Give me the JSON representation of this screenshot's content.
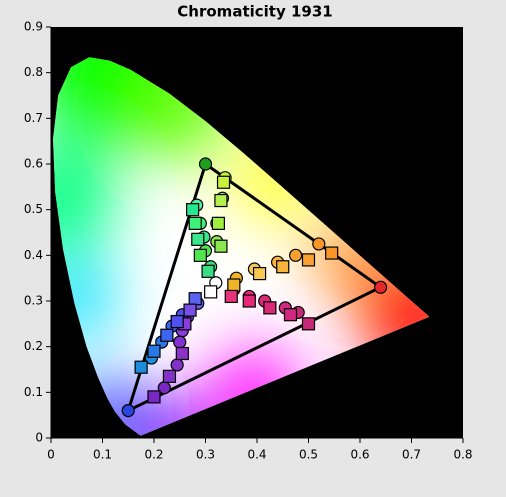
{
  "chart_data": {
    "type": "scatter",
    "title": "Chromaticity 1931",
    "xlim": [
      0,
      0.8
    ],
    "ylim": [
      0,
      0.9
    ],
    "xticks": [
      0,
      0.1,
      0.2,
      0.3,
      0.4,
      0.5,
      0.6,
      0.7,
      0.8
    ],
    "yticks": [
      0,
      0.1,
      0.2,
      0.3,
      0.4,
      0.5,
      0.6,
      0.7,
      0.8,
      0.9
    ],
    "background": "#000000",
    "gamut": {
      "x": [
        0.64,
        0.3,
        0.15
      ],
      "y": [
        0.33,
        0.6,
        0.06
      ],
      "colors": [
        "#e62828",
        "#1ea01e",
        "#2846dc"
      ],
      "line_color": "#000000"
    },
    "series": [
      {
        "marker": "circle",
        "x": [
          0.338,
          0.333,
          0.322,
          0.322,
          0.283,
          0.29,
          0.297,
          0.3,
          0.31,
          0.32,
          0.36,
          0.395,
          0.44,
          0.475,
          0.52,
          0.355,
          0.385,
          0.415,
          0.455,
          0.48,
          0.285,
          0.265,
          0.255,
          0.25,
          0.245,
          0.22,
          0.195,
          0.215,
          0.235,
          0.255
        ],
        "y": [
          0.57,
          0.525,
          0.47,
          0.43,
          0.51,
          0.47,
          0.44,
          0.41,
          0.375,
          0.34,
          0.35,
          0.37,
          0.385,
          0.4,
          0.425,
          0.325,
          0.31,
          0.3,
          0.285,
          0.275,
          0.295,
          0.265,
          0.235,
          0.21,
          0.16,
          0.11,
          0.175,
          0.21,
          0.245,
          0.27
        ],
        "colors": [
          "#c8f03c",
          "#b4f050",
          "#a0f040",
          "#8ce650",
          "#50f0a0",
          "#3cf078",
          "#3ce68c",
          "#50e650",
          "#3cdc82",
          "#ffffff",
          "#f0b428",
          "#f8c850",
          "#f8b43c",
          "#f8a030",
          "#f89628",
          "#e01e5a",
          "#e6287a",
          "#dc2878",
          "#d22882",
          "#c8287a",
          "#6464f0",
          "#7850e6",
          "#8c3cdc",
          "#8232d2",
          "#8232c8",
          "#7828c0",
          "#1e8cdc",
          "#2878e6",
          "#3c64f0",
          "#5050f0"
        ]
      },
      {
        "marker": "square",
        "x": [
          0.335,
          0.33,
          0.325,
          0.33,
          0.275,
          0.28,
          0.285,
          0.29,
          0.305,
          0.31,
          0.355,
          0.405,
          0.45,
          0.5,
          0.545,
          0.35,
          0.385,
          0.425,
          0.465,
          0.5,
          0.28,
          0.27,
          0.26,
          0.255,
          0.23,
          0.2,
          0.175,
          0.2,
          0.225,
          0.245
        ],
        "y": [
          0.56,
          0.52,
          0.47,
          0.42,
          0.5,
          0.47,
          0.435,
          0.4,
          0.365,
          0.32,
          0.335,
          0.36,
          0.375,
          0.39,
          0.405,
          0.31,
          0.3,
          0.285,
          0.27,
          0.25,
          0.305,
          0.28,
          0.25,
          0.185,
          0.135,
          0.09,
          0.155,
          0.19,
          0.225,
          0.255
        ],
        "colors": [
          "#c8f03c",
          "#b4f050",
          "#a0f040",
          "#8ce650",
          "#28e690",
          "#3cf078",
          "#3ce68c",
          "#50e650",
          "#3cdc82",
          "#ffffff",
          "#f0b428",
          "#f8c850",
          "#f8b43c",
          "#f8a030",
          "#f89628",
          "#e63278",
          "#e6287a",
          "#dc2878",
          "#d22882",
          "#c8287a",
          "#5a64f0",
          "#7850e6",
          "#8c3cdc",
          "#8c32c8",
          "#8232c8",
          "#7828c0",
          "#1e8cdc",
          "#2878e6",
          "#3c64f0",
          "#5050f0"
        ]
      }
    ]
  }
}
